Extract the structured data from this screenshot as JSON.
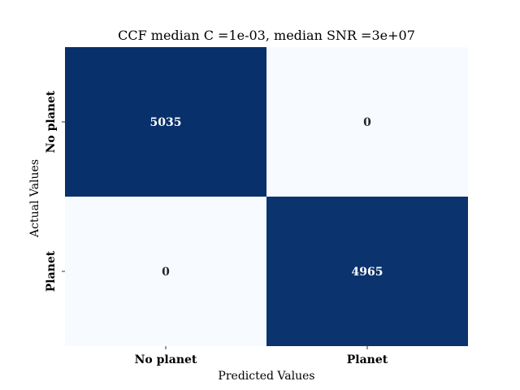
{
  "chart_data": {
    "type": "heatmap",
    "title": "CCF median C =1e-03, median SNR =3e+07",
    "xlabel": "Predicted Values",
    "ylabel": "Actual Values",
    "x_categories": [
      "No planet",
      "Planet"
    ],
    "y_categories": [
      "No planet",
      "Planet"
    ],
    "matrix": [
      [
        5035,
        0
      ],
      [
        0,
        4965
      ]
    ],
    "colormap": {
      "low": "#f7fbff",
      "high": "#08306b"
    },
    "label_colors": {
      "on_dark": "#ffffff",
      "on_light": "#262626"
    },
    "colorbar": false,
    "grid": false
  }
}
